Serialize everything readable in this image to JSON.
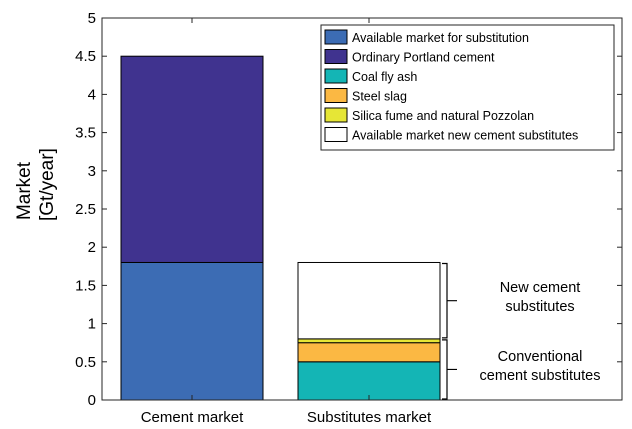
{
  "chart_data": {
    "type": "bar",
    "stacked": true,
    "ylabel_lines": [
      "Market",
      "[Gt/year]"
    ],
    "ylim": [
      0,
      5
    ],
    "yticks": [
      "0",
      "0.5",
      "1",
      "1.5",
      "2",
      "2.5",
      "3",
      "3.5",
      "4",
      "4.5",
      "5"
    ],
    "categories": [
      "Cement market",
      "Substitutes market"
    ],
    "series": [
      {
        "name": "Available market for substitution",
        "color": "#3c6cb4",
        "values": [
          1.8,
          0
        ]
      },
      {
        "name": "Ordinary Portland cement",
        "color": "#40338f",
        "values": [
          2.7,
          0
        ]
      },
      {
        "name": "Coal fly ash",
        "color": "#14b5b5",
        "values": [
          0,
          0.5
        ]
      },
      {
        "name": "Steel slag",
        "color": "#fbb843",
        "values": [
          0,
          0.25
        ]
      },
      {
        "name": "Silica fume and natural Pozzolan",
        "color": "#e6e636",
        "values": [
          0,
          0.05
        ]
      },
      {
        "name": "Available market new cement substitutes",
        "color": "#ffffff",
        "values": [
          0,
          1.0
        ]
      }
    ],
    "annotations": [
      {
        "lines": [
          "New cement",
          "substitutes"
        ],
        "range": [
          0.8,
          1.8
        ]
      },
      {
        "lines": [
          "Conventional",
          "cement substitutes"
        ],
        "range": [
          0,
          0.8
        ]
      }
    ],
    "legend_position": "top-right",
    "grid": false
  }
}
